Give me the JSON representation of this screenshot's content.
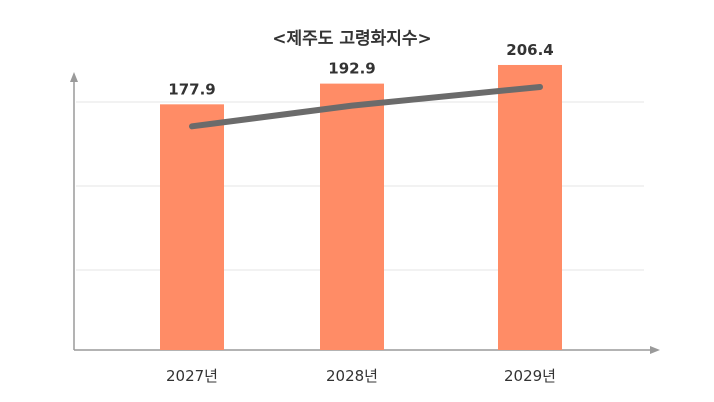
{
  "chart_data": {
    "type": "bar",
    "title": "<제주도 고령화지수>",
    "categories": [
      "2027년",
      "2028년",
      "2029년"
    ],
    "values": [
      177.9,
      192.9,
      206.4
    ],
    "value_labels": [
      "177.9",
      "192.9",
      "206.4"
    ],
    "overlay_line": true,
    "ylim": [
      0,
      210
    ],
    "grid": true,
    "xlabel": "",
    "ylabel": "",
    "colors": {
      "bar": "#ff8c66",
      "line": "#6b6b6b",
      "grid": "#e5e5e5",
      "axis": "#9a9a9a"
    }
  }
}
